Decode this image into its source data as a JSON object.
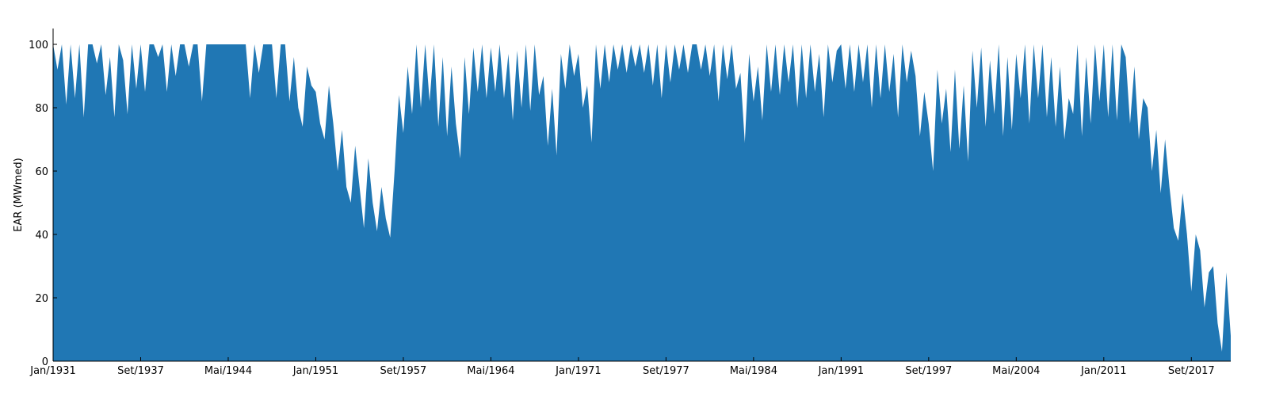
{
  "chart_data": {
    "type": "area",
    "ylabel": "EAR (MWmed)",
    "color": "#2077b4",
    "categories": [
      "Jan/1931",
      null,
      null,
      null,
      null,
      null,
      null,
      null,
      null,
      null,
      null,
      null,
      null,
      null,
      null,
      null,
      null,
      null,
      null,
      null,
      "Set/1937",
      null,
      null,
      null,
      null,
      null,
      null,
      null,
      null,
      null,
      null,
      null,
      null,
      null,
      null,
      null,
      null,
      null,
      null,
      null,
      "Mai/1944",
      null,
      null,
      null,
      null,
      null,
      null,
      null,
      null,
      null,
      null,
      null,
      null,
      null,
      null,
      null,
      null,
      null,
      null,
      null,
      "Jan/1951",
      null,
      null,
      null,
      null,
      null,
      null,
      null,
      null,
      null,
      null,
      null,
      null,
      null,
      null,
      null,
      null,
      null,
      null,
      null,
      "Set/1957",
      null,
      null,
      null,
      null,
      null,
      null,
      null,
      null,
      null,
      null,
      null,
      null,
      null,
      null,
      null,
      null,
      null,
      null,
      null,
      "Mai/1964",
      null,
      null,
      null,
      null,
      null,
      null,
      null,
      null,
      null,
      null,
      null,
      null,
      null,
      null,
      null,
      null,
      null,
      null,
      null,
      "Jan/1971",
      null,
      null,
      null,
      null,
      null,
      null,
      null,
      null,
      null,
      null,
      null,
      null,
      null,
      null,
      null,
      null,
      null,
      null,
      null,
      "Set/1977",
      null,
      null,
      null,
      null,
      null,
      null,
      null,
      null,
      null,
      null,
      null,
      null,
      null,
      null,
      null,
      null,
      null,
      null,
      null,
      "Mai/1984",
      null,
      null,
      null,
      null,
      null,
      null,
      null,
      null,
      null,
      null,
      null,
      null,
      null,
      null,
      null,
      null,
      null,
      null,
      null,
      "Jan/1991",
      null,
      null,
      null,
      null,
      null,
      null,
      null,
      null,
      null,
      null,
      null,
      null,
      null,
      null,
      null,
      null,
      null,
      null,
      null,
      "Set/1997",
      null,
      null,
      null,
      null,
      null,
      null,
      null,
      null,
      null,
      null,
      null,
      null,
      null,
      null,
      null,
      null,
      null,
      null,
      null,
      "Mai/2004",
      null,
      null,
      null,
      null,
      null,
      null,
      null,
      null,
      null,
      null,
      null,
      null,
      null,
      null,
      null,
      null,
      null,
      null,
      null,
      "Jan/2011",
      null,
      null,
      null,
      null,
      null,
      null,
      null,
      null,
      null,
      null,
      null,
      null,
      null,
      null,
      null,
      null,
      null,
      null,
      null,
      "Set/2017",
      null,
      null,
      null,
      null,
      null,
      null,
      null,
      null,
      null
    ],
    "values": [
      100,
      92,
      100,
      81,
      100,
      83,
      100,
      77,
      100,
      100,
      94,
      100,
      84,
      96,
      77,
      100,
      95,
      78,
      100,
      86,
      100,
      85,
      100,
      100,
      96,
      100,
      85,
      100,
      90,
      100,
      100,
      93,
      100,
      100,
      82,
      100,
      100,
      100,
      100,
      100,
      100,
      100,
      100,
      100,
      100,
      83,
      100,
      91,
      100,
      100,
      100,
      83,
      100,
      100,
      82,
      96,
      80,
      74,
      93,
      87,
      85,
      75,
      70,
      87,
      75,
      60,
      73,
      55,
      50,
      68,
      55,
      42,
      64,
      50,
      41,
      55,
      45,
      39,
      60,
      84,
      72,
      93,
      78,
      100,
      80,
      100,
      82,
      100,
      74,
      96,
      71,
      93,
      75,
      64,
      96,
      78,
      99,
      85,
      100,
      83,
      99,
      85,
      100,
      83,
      97,
      76,
      98,
      80,
      100,
      79,
      100,
      84,
      90,
      68,
      86,
      65,
      97,
      86,
      100,
      90,
      97,
      80,
      87,
      69,
      100,
      86,
      100,
      88,
      100,
      92,
      100,
      91,
      100,
      93,
      100,
      91,
      100,
      87,
      100,
      83,
      100,
      88,
      100,
      92,
      100,
      91,
      100,
      100,
      92,
      100,
      90,
      100,
      82,
      100,
      89,
      100,
      86,
      91,
      69,
      97,
      82,
      93,
      76,
      100,
      85,
      100,
      84,
      100,
      88,
      100,
      80,
      100,
      83,
      100,
      85,
      97,
      77,
      100,
      88,
      98,
      100,
      86,
      100,
      85,
      100,
      88,
      100,
      80,
      100,
      83,
      100,
      85,
      97,
      77,
      100,
      88,
      98,
      90,
      71,
      85,
      75,
      60,
      92,
      75,
      86,
      66,
      92,
      67,
      87,
      63,
      98,
      80,
      99,
      74,
      95,
      78,
      100,
      71,
      96,
      73,
      97,
      83,
      100,
      75,
      100,
      83,
      100,
      77,
      96,
      74,
      93,
      70,
      83,
      78,
      100,
      71,
      96,
      75,
      100,
      82,
      100,
      77,
      100,
      76,
      100,
      96,
      75,
      93,
      70,
      83,
      80,
      60,
      73,
      53,
      70,
      55,
      42,
      38,
      53,
      40,
      22,
      40,
      35,
      17,
      28,
      30,
      12,
      3,
      28,
      8
    ],
    "ylim": [
      0,
      105
    ],
    "yticks": [
      0,
      20,
      40,
      60,
      80,
      100
    ]
  }
}
